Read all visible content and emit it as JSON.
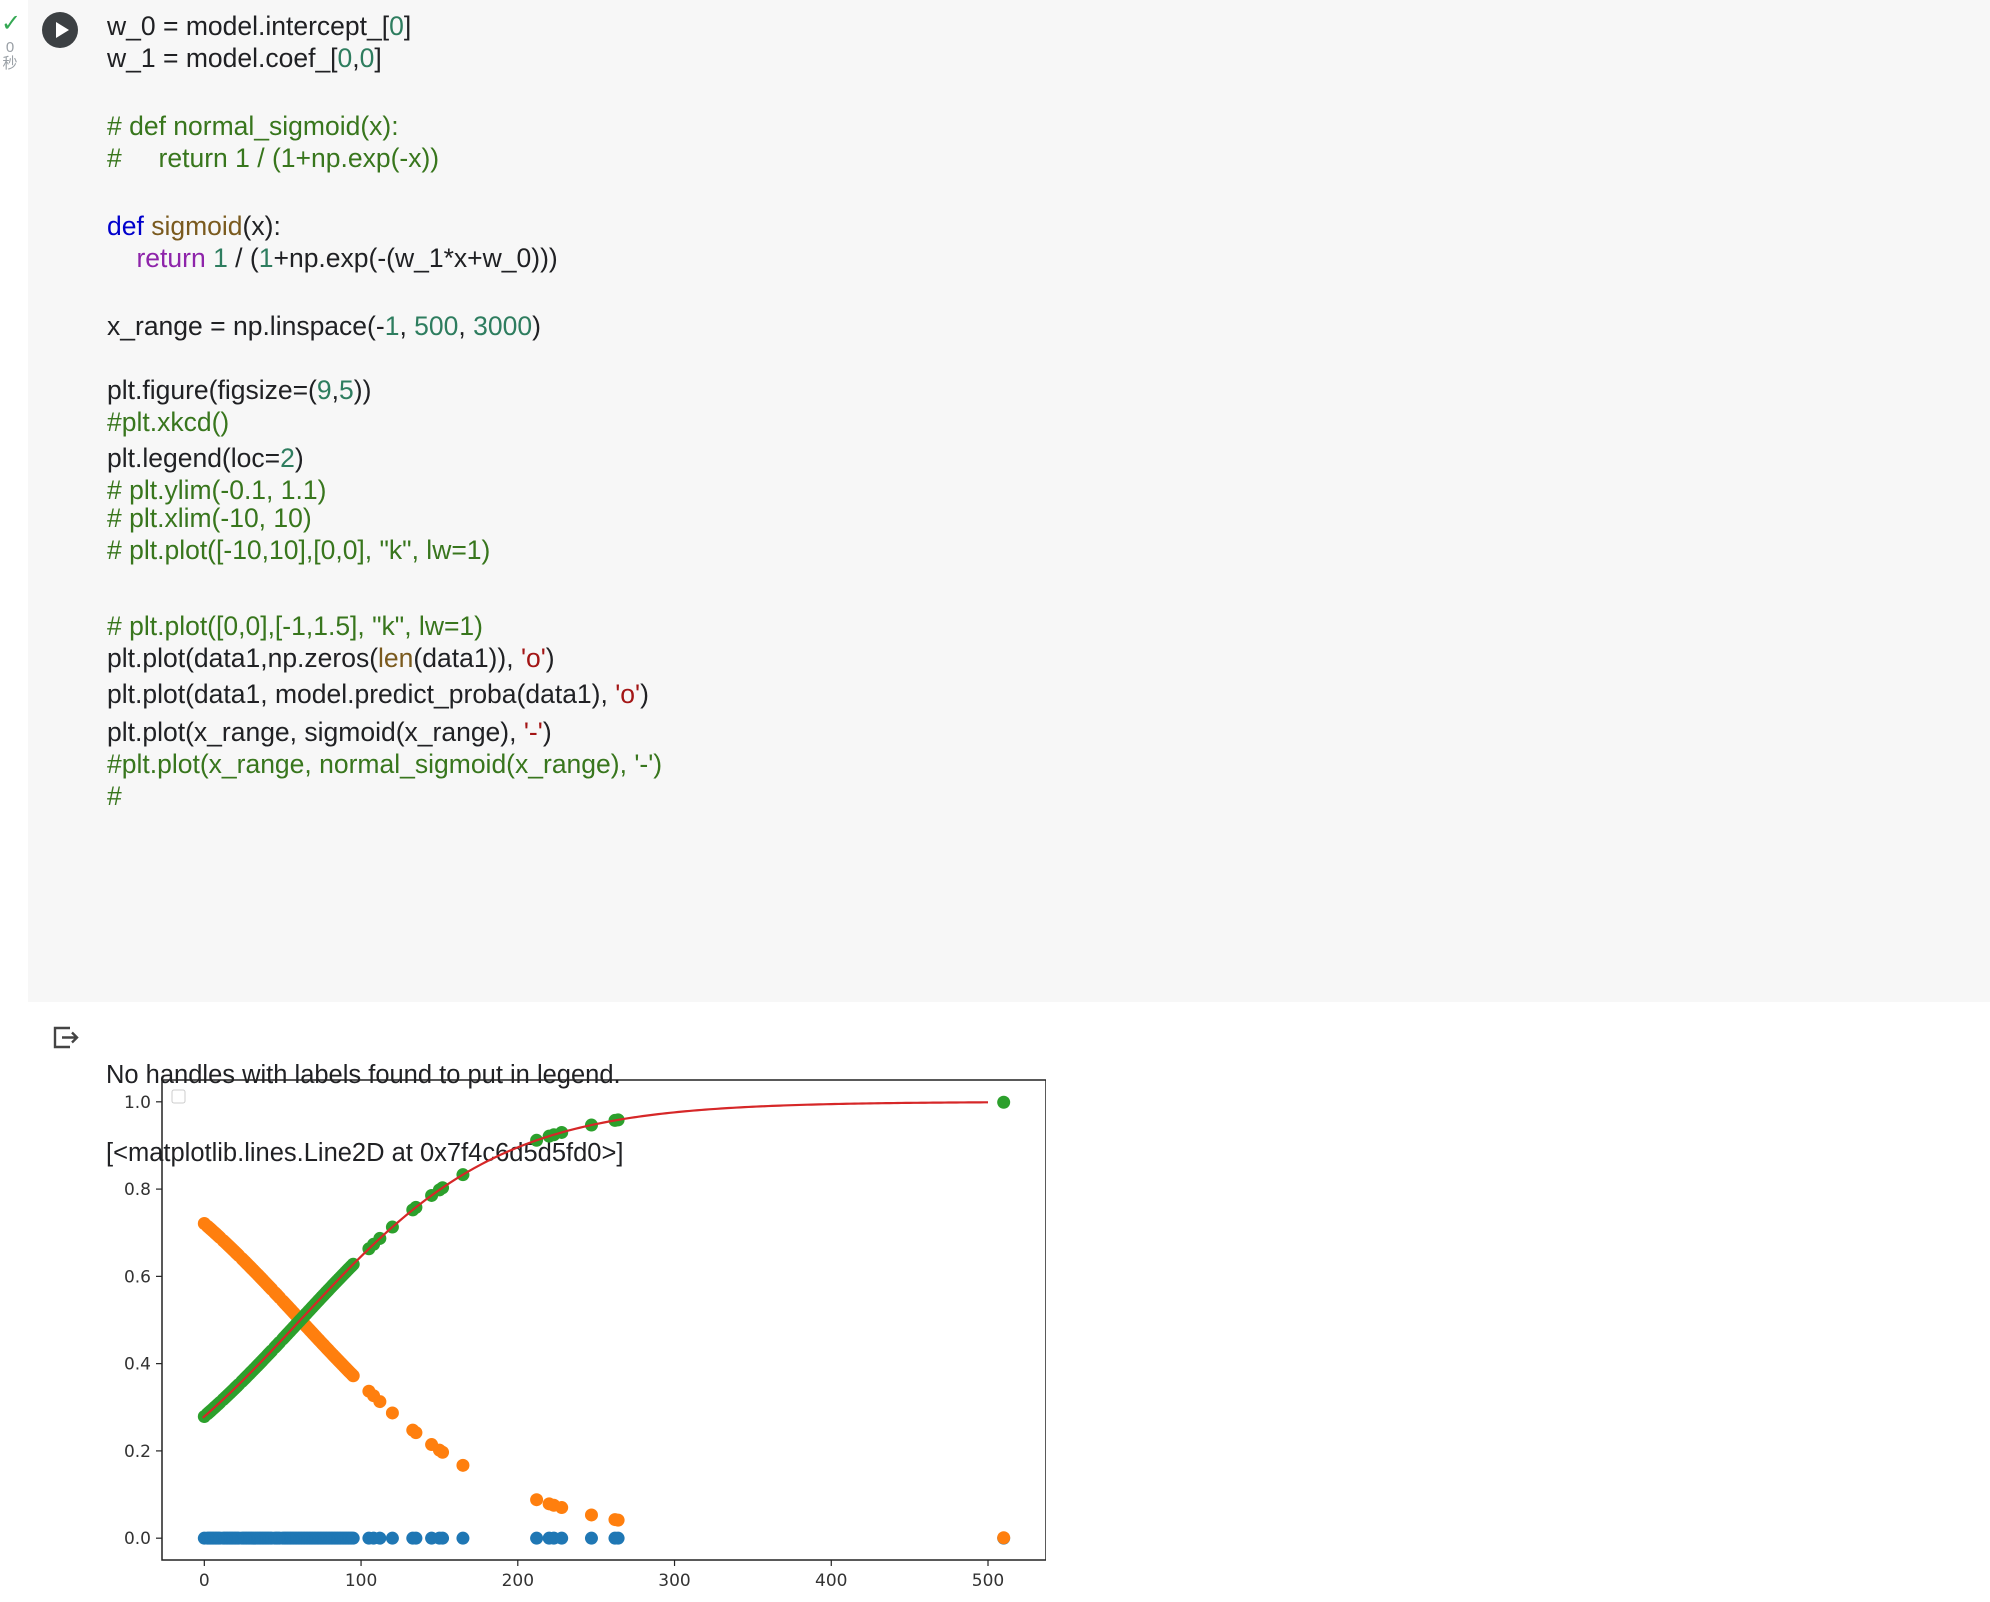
{
  "cell_status": {
    "check": "✓",
    "seconds": "0",
    "seconds_unit": "秒"
  },
  "run_button": {
    "icon": "play-icon"
  },
  "code_lines": [
    [
      {
        "t": "w_0 = model.intercept_["
      },
      {
        "t": "0",
        "c": "num"
      },
      {
        "t": "]"
      }
    ],
    [
      {
        "t": "w_1 = model.coef_["
      },
      {
        "t": "0",
        "c": "num"
      },
      {
        "t": ","
      },
      {
        "t": "0",
        "c": "num"
      },
      {
        "t": "]"
      }
    ],
    [],
    [
      {
        "t": "# def normal_sigmoid(x):",
        "c": "cmt"
      }
    ],
    [
      {
        "t": "#     return 1 / (1+np.exp(-x))",
        "c": "cmt"
      }
    ],
    [],
    [
      {
        "t": "def",
        "c": "kw"
      },
      {
        "t": " "
      },
      {
        "t": "sigmoid",
        "c": "fn"
      },
      {
        "t": "(x):"
      }
    ],
    [
      {
        "t": "    "
      },
      {
        "t": "return",
        "c": "ret"
      },
      {
        "t": " "
      },
      {
        "t": "1",
        "c": "num"
      },
      {
        "t": " / ("
      },
      {
        "t": "1",
        "c": "num"
      },
      {
        "t": "+np.exp(-(w_1*x+w_0)))"
      }
    ],
    [],
    [
      {
        "t": "x_range = np.linspace(-"
      },
      {
        "t": "1",
        "c": "num"
      },
      {
        "t": ", "
      },
      {
        "t": "500",
        "c": "num"
      },
      {
        "t": ", "
      },
      {
        "t": "3000",
        "c": "num"
      },
      {
        "t": ")"
      }
    ],
    [],
    [
      {
        "t": "plt.figure(figsize=("
      },
      {
        "t": "9",
        "c": "num"
      },
      {
        "t": ","
      },
      {
        "t": "5",
        "c": "num"
      },
      {
        "t": "))"
      }
    ],
    [
      {
        "t": "#plt.xkcd()",
        "c": "cmt"
      }
    ],
    [
      {
        "t": "plt.legend(loc="
      },
      {
        "t": "2",
        "c": "num"
      },
      {
        "t": ")"
      }
    ],
    [],
    [],
    [
      {
        "t": "# plt.ylim(-0.1, 1.1)",
        "c": "cmt"
      }
    ],
    [
      {
        "t": "# plt.xlim(-10, 10)",
        "c": "cmt"
      }
    ],
    [],
    [
      {
        "t": "# plt.plot([-10,10],[0,0], \"k\", lw=1)",
        "c": "cmt"
      }
    ],
    [
      {
        "t": "# plt.plot([0,0],[-1,1.5], \"k\", lw=1)",
        "c": "cmt"
      }
    ],
    [
      {
        "t": "plt.plot(data1,np.zeros("
      },
      {
        "t": "len",
        "c": "bi"
      },
      {
        "t": "(data1)), "
      },
      {
        "t": "'o'",
        "c": "str"
      },
      {
        "t": ")"
      }
    ],
    [
      {
        "t": "plt.plot(data1, model.predict_proba(data1), "
      },
      {
        "t": "'o'",
        "c": "str"
      },
      {
        "t": ")"
      }
    ],
    [
      {
        "t": "plt.plot(x_range, sigmoid(x_range), "
      },
      {
        "t": "'-'",
        "c": "str"
      },
      {
        "t": ")"
      }
    ],
    [
      {
        "t": "#plt.plot(x_range, normal_sigmoid(x_range), '-')",
        "c": "cmt"
      }
    ],
    [
      {
        "t": "#",
        "c": "cmt"
      }
    ]
  ],
  "output": {
    "icon": "output-redirect-icon",
    "lines": [
      "No handles with labels found to put in legend.",
      "[<matplotlib.lines.Line2D at 0x7f4c6d5d5fd0>]"
    ]
  },
  "chart_data": {
    "type": "scatter",
    "xlim": [
      -27,
      537
    ],
    "ylim": [
      -0.05,
      1.05
    ],
    "xticks": [
      0,
      100,
      200,
      300,
      400,
      500
    ],
    "xtick_labels": [
      "0",
      "100",
      "200",
      "300",
      "400",
      "500"
    ],
    "yticks": [
      0.0,
      0.2,
      0.4,
      0.6,
      0.8,
      1.0
    ],
    "ytick_labels": [
      "0.0",
      "0.2",
      "0.4",
      "0.6",
      "0.8",
      "1.0"
    ],
    "grid": false,
    "legend": "top-left (empty)",
    "curve": {
      "w0": -0.95,
      "w1": 0.0155,
      "x_start": -1,
      "x_end": 500,
      "color": "#d62728"
    },
    "colors": {
      "zeros": "#1f77b4",
      "prob_class0": "#ff7f0e",
      "prob_class1": "#2ca02c"
    },
    "points_x": [
      0,
      2,
      3,
      4,
      5,
      6,
      7,
      8,
      9,
      10,
      12,
      13,
      14,
      15,
      16,
      17,
      18,
      19,
      20,
      21,
      22,
      24,
      25,
      26,
      27,
      28,
      29,
      30,
      31,
      32,
      33,
      34,
      35,
      36,
      37,
      38,
      39,
      40,
      41,
      42,
      43,
      45,
      46,
      47,
      48,
      50,
      51,
      52,
      53,
      54,
      55,
      56,
      57,
      58,
      59,
      60,
      61,
      62,
      63,
      64,
      65,
      66,
      67,
      68,
      69,
      70,
      71,
      72,
      73,
      74,
      75,
      76,
      77,
      78,
      79,
      80,
      81,
      82,
      83,
      84,
      85,
      86,
      87,
      88,
      89,
      90,
      91,
      92,
      93,
      94,
      95,
      105,
      108,
      112,
      120,
      133,
      135,
      145,
      150,
      152,
      165,
      212,
      220,
      223,
      228,
      247,
      262,
      264,
      510
    ]
  }
}
